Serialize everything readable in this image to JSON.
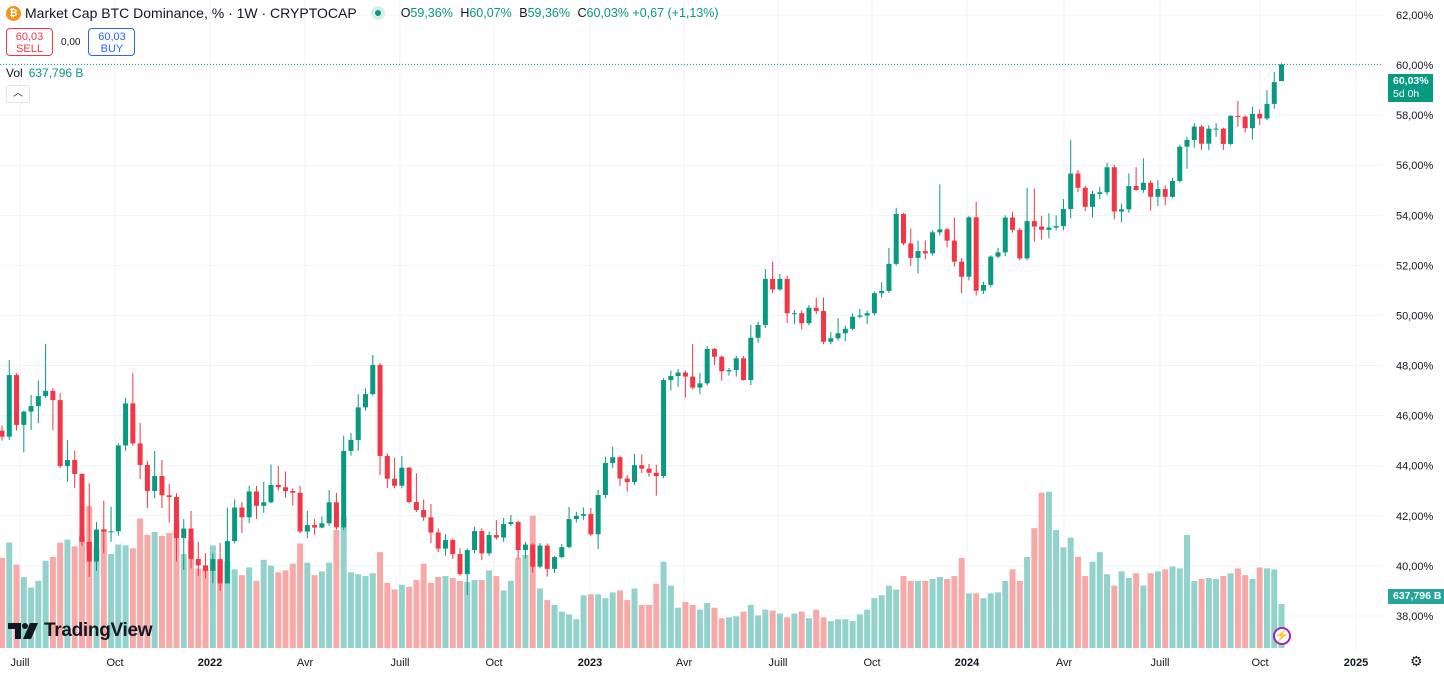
{
  "header": {
    "symbol_icon": "bitcoin-icon",
    "title": "Market Cap BTC Dominance, % · 1W · CRYPTOCAP",
    "ohlc": [
      {
        "label": "O",
        "value": "59,36%"
      },
      {
        "label": "H",
        "value": "60,07%"
      },
      {
        "label": "B",
        "value": "59,36%"
      },
      {
        "label": "C",
        "value": "60,03%"
      }
    ],
    "change": "+0,67 (+1,13%)"
  },
  "trade": {
    "sell_price": "60,03",
    "sell_label": "SELL",
    "spread": "0,00",
    "buy_price": "60,03",
    "buy_label": "BUY"
  },
  "volume_legend": {
    "label": "Vol",
    "value": "637,796 B"
  },
  "collapse_icon": "chevron-up-icon",
  "price_label": {
    "value": "60,03%",
    "countdown": "5d 0h"
  },
  "volume_label": "637,796 B",
  "logo": "TradingView",
  "colors": {
    "up": "#089981",
    "down": "#f23645",
    "vol_up": "#92d2cc",
    "vol_down": "#f7a9a7"
  },
  "chart_data": {
    "type": "candlestick",
    "interval": "1W",
    "y_ticks": [
      "62,00%",
      "60,00%",
      "58,00%",
      "56,00%",
      "54,00%",
      "52,00%",
      "50,00%",
      "48,00%",
      "46,00%",
      "44,00%",
      "42,00%",
      "40,00%",
      "38,00%"
    ],
    "y_tick_values": [
      62,
      60,
      58,
      56,
      54,
      52,
      50,
      48,
      46,
      44,
      42,
      40,
      38
    ],
    "ylim": [
      37.6,
      62.6
    ],
    "x_ticks": [
      {
        "label": "Juill",
        "year": false
      },
      {
        "label": "Oct",
        "year": false
      },
      {
        "label": "2022",
        "year": true
      },
      {
        "label": "Avr",
        "year": false
      },
      {
        "label": "Juill",
        "year": false
      },
      {
        "label": "Oct",
        "year": false
      },
      {
        "label": "2023",
        "year": true
      },
      {
        "label": "Avr",
        "year": false
      },
      {
        "label": "Juill",
        "year": false
      },
      {
        "label": "Oct",
        "year": false
      },
      {
        "label": "2024",
        "year": true
      },
      {
        "label": "Avr",
        "year": false
      },
      {
        "label": "Juill",
        "year": false
      },
      {
        "label": "Oct",
        "year": false
      },
      {
        "label": "2025",
        "year": true
      }
    ],
    "grid": true,
    "last_price": 60.03,
    "open": [
      45.4,
      45.16,
      47.62,
      45.63,
      46.16,
      46.38,
      46.78,
      46.99,
      46.62,
      43.99,
      44.23,
      43.67,
      40.96,
      40.17,
      41.45,
      41.37,
      41.38,
      44.81,
      46.49,
      44.89,
      44.03,
      42.99,
      43.59,
      42.82,
      42.75,
      41.11,
      41.49,
      40.28,
      40.02,
      39.8,
      40.27,
      39.3,
      40.99,
      42.33,
      41.94,
      42.97,
      42.4,
      42.54,
      43.23,
      43.14,
      42.99,
      42.92,
      41.37,
      41.63,
      41.53,
      41.7,
      42.54,
      41.54,
      44.59,
      45.03,
      46.33,
      46.86,
      48.02,
      44.39,
      43.48,
      43.2,
      43.92,
      42.55,
      42.23,
      41.94,
      41.33,
      40.69,
      41.03,
      40.47,
      39.67,
      40.63,
      41.39,
      40.5,
      41.23,
      41.13,
      41.67,
      41.75,
      40.63,
      40.85,
      39.97,
      40.81,
      39.88,
      40.35,
      40.75,
      41.87,
      42.0,
      42.07,
      41.26,
      42.83,
      44.11,
      44.34,
      43.49,
      43.35,
      44.02,
      43.88,
      43.72,
      43.59,
      47.42,
      47.58,
      47.72,
      47.56,
      47.12,
      47.29,
      48.66,
      48.35,
      47.77,
      47.82,
      48.29,
      47.42,
      49.11,
      49.62,
      51.46,
      51.04,
      51.46,
      50.09,
      50.09,
      49.69,
      50.31,
      50.18,
      48.95,
      49.09,
      49.29,
      49.47,
      49.95,
      50.0,
      50.09,
      50.89,
      50.98,
      52.06,
      54.05,
      52.88,
      52.3,
      52.57,
      52.48,
      53.32,
      53.44,
      52.99,
      52.15,
      51.55,
      53.92,
      50.99,
      51.22,
      52.35,
      52.52,
      53.91,
      53.42,
      52.28,
      53.77,
      53.55,
      53.42,
      53.51,
      53.57,
      54.25,
      55.67,
      55.1,
      54.34,
      54.85,
      54.92,
      55.92,
      54.15,
      54.24,
      55.17,
      55.01,
      55.3,
      54.74,
      55.05,
      54.74,
      55.37,
      56.74,
      57.01,
      57.54,
      56.86,
      57.44,
      57.46,
      56.85,
      57.97,
      57.94,
      57.48,
      58.05,
      57.87,
      58.45,
      59.36
    ],
    "high": [
      45.6,
      48.22,
      47.7,
      46.2,
      46.82,
      47.4,
      48.86,
      47.1,
      46.9,
      45.03,
      44.6,
      43.7,
      43.3,
      41.75,
      42.6,
      42.36,
      44.9,
      46.72,
      47.7,
      45.72,
      44.2,
      44.59,
      44.23,
      43.27,
      42.9,
      41.87,
      42.2,
      40.96,
      40.5,
      40.5,
      40.92,
      42.33,
      42.65,
      42.55,
      43.2,
      43.2,
      43.36,
      44.05,
      43.99,
      43.77,
      43.1,
      43.19,
      42.19,
      41.87,
      41.97,
      43.03,
      42.91,
      45.2,
      45.3,
      46.86,
      47.09,
      48.42,
      48.1,
      44.5,
      44.32,
      44.39,
      43.95,
      43.7,
      42.65,
      42.47,
      41.5,
      41.27,
      41.1,
      40.7,
      40.7,
      41.56,
      41.5,
      41.37,
      41.83,
      41.91,
      42.03,
      41.8,
      40.96,
      40.9,
      40.91,
      40.9,
      40.4,
      40.87,
      42.35,
      42.16,
      42.33,
      42.31,
      43.03,
      44.36,
      44.76,
      44.4,
      43.63,
      44.47,
      44.45,
      44.07,
      44.03,
      47.5,
      47.8,
      47.86,
      47.8,
      48.86,
      47.7,
      48.78,
      48.7,
      48.4,
      47.9,
      48.4,
      48.38,
      49.62,
      49.75,
      51.86,
      52.15,
      51.66,
      51.6,
      50.22,
      50.2,
      50.42,
      50.71,
      50.71,
      49.33,
      49.89,
      49.6,
      50.09,
      50.26,
      50.2,
      50.95,
      51.33,
      52.7,
      54.3,
      54.1,
      53.47,
      52.99,
      52.99,
      53.4,
      55.24,
      53.5,
      53.91,
      52.3,
      53.98,
      54.54,
      51.35,
      52.4,
      52.7,
      54.0,
      54.15,
      53.5,
      55.1,
      55.07,
      53.98,
      54.08,
      54.0,
      54.65,
      57.0,
      55.81,
      55.18,
      54.98,
      55.14,
      56.1,
      56.01,
      54.47,
      55.67,
      55.92,
      56.28,
      55.4,
      55.41,
      55.2,
      55.5,
      56.8,
      57.14,
      57.68,
      57.6,
      57.6,
      57.68,
      57.5,
      58.0,
      58.58,
      58.0,
      58.34,
      58.23,
      59.0,
      59.72,
      60.07
    ],
    "low": [
      45.0,
      45.03,
      45.4,
      44.53,
      45.43,
      45.7,
      46.7,
      45.43,
      43.9,
      43.36,
      43.11,
      40.8,
      39.56,
      39.8,
      40.5,
      40.96,
      41.2,
      44.6,
      44.8,
      43.47,
      42.31,
      42.7,
      42.31,
      41.73,
      40.17,
      39.84,
      39.9,
      39.6,
      39.5,
      39.3,
      39.0,
      39.3,
      40.9,
      41.31,
      41.71,
      41.87,
      42.12,
      42.5,
      43.0,
      42.72,
      42.41,
      41.3,
      41.1,
      41.23,
      41.5,
      41.6,
      41.45,
      41.43,
      44.4,
      44.6,
      46.2,
      46.8,
      43.63,
      43.11,
      43.1,
      43.1,
      42.5,
      42.15,
      41.8,
      40.91,
      40.55,
      40.41,
      40.27,
      39.61,
      38.84,
      40.5,
      40.23,
      40.4,
      41.05,
      40.96,
      41.6,
      40.27,
      40.3,
      39.72,
      39.9,
      39.57,
      39.72,
      40.3,
      40.7,
      41.73,
      41.84,
      41.2,
      40.67,
      42.7,
      43.9,
      43.2,
      42.97,
      43.23,
      43.71,
      43.56,
      42.8,
      43.5,
      47.0,
      47.15,
      46.72,
      47.05,
      46.86,
      47.2,
      48.02,
      47.4,
      47.6,
      47.56,
      47.4,
      47.22,
      48.91,
      49.5,
      50.89,
      51.0,
      49.7,
      49.66,
      49.44,
      49.6,
      50.05,
      48.85,
      48.85,
      49.0,
      48.98,
      49.4,
      49.9,
      49.66,
      50.0,
      50.71,
      50.9,
      52.0,
      52.8,
      51.98,
      51.68,
      52.24,
      52.39,
      53.2,
      52.72,
      51.95,
      50.89,
      51.4,
      50.8,
      50.86,
      51.12,
      52.28,
      52.37,
      53.31,
      52.2,
      52.2,
      52.95,
      53.02,
      53.08,
      53.4,
      53.4,
      53.88,
      54.92,
      54.17,
      53.91,
      54.64,
      54.8,
      53.84,
      53.71,
      54.1,
      54.98,
      54.9,
      54.19,
      54.37,
      54.4,
      54.7,
      55.31,
      55.86,
      56.7,
      56.61,
      56.6,
      57.14,
      56.61,
      56.8,
      57.54,
      57.3,
      57.03,
      57.61,
      57.8,
      58.25,
      59.36
    ],
    "close": [
      45.16,
      47.62,
      45.63,
      46.16,
      46.38,
      46.78,
      46.99,
      46.62,
      43.99,
      44.23,
      43.67,
      40.96,
      40.17,
      41.45,
      41.37,
      41.38,
      44.81,
      46.49,
      44.89,
      44.03,
      42.99,
      43.59,
      42.82,
      42.75,
      41.11,
      41.49,
      40.28,
      40.02,
      39.8,
      40.27,
      39.3,
      40.99,
      42.33,
      41.94,
      42.97,
      42.4,
      42.54,
      43.23,
      43.14,
      42.99,
      42.92,
      41.37,
      41.63,
      41.53,
      41.7,
      42.54,
      41.54,
      44.59,
      45.03,
      46.33,
      46.86,
      48.02,
      44.39,
      43.48,
      43.2,
      43.92,
      42.55,
      42.23,
      41.94,
      41.33,
      40.69,
      41.03,
      40.47,
      39.67,
      40.63,
      41.39,
      40.5,
      41.23,
      41.13,
      41.67,
      41.75,
      40.63,
      40.85,
      39.97,
      40.81,
      39.88,
      40.35,
      40.75,
      41.87,
      42.0,
      42.07,
      41.26,
      42.83,
      44.11,
      44.34,
      43.49,
      43.35,
      44.02,
      43.88,
      43.72,
      43.59,
      47.42,
      47.58,
      47.72,
      47.56,
      47.12,
      47.29,
      48.66,
      48.35,
      47.77,
      47.82,
      48.29,
      47.42,
      49.11,
      49.62,
      51.46,
      51.04,
      51.46,
      50.09,
      50.09,
      49.69,
      50.31,
      50.18,
      48.95,
      49.09,
      49.29,
      49.47,
      49.95,
      50.0,
      50.09,
      50.89,
      50.98,
      52.06,
      54.05,
      52.88,
      52.3,
      52.57,
      52.48,
      53.32,
      53.44,
      52.99,
      52.15,
      51.55,
      53.92,
      50.99,
      51.22,
      52.35,
      52.52,
      53.91,
      53.42,
      52.28,
      53.77,
      53.55,
      53.42,
      53.51,
      53.57,
      54.25,
      55.67,
      55.1,
      54.34,
      54.85,
      54.92,
      55.92,
      54.15,
      54.24,
      55.17,
      55.01,
      55.3,
      54.74,
      55.05,
      54.74,
      55.37,
      56.74,
      57.01,
      57.54,
      56.86,
      57.46,
      57.46,
      56.85,
      57.97,
      57.94,
      57.48,
      58.05,
      57.87,
      58.45,
      59.32,
      60.03
    ],
    "volume_unit": "B",
    "volume": [
      1307,
      1529,
      1209,
      1029,
      876,
      973,
      1265,
      1321,
      1529,
      1571,
      1473,
      1626,
      2057,
      1460,
      1724,
      1362,
      1501,
      1487,
      1446,
      1877,
      1640,
      1682,
      1626,
      1668,
      1793,
      1362,
      1557,
      1154,
      1154,
      1487,
      1265,
      1251,
      1140,
      1056,
      1168,
      973,
      1279,
      1195,
      1098,
      1126,
      1223,
      1515,
      1237,
      1056,
      1112,
      1237,
      1710,
      1904,
      1098,
      1070,
      1043,
      1084,
      1390,
      945,
      848,
      917,
      890,
      987,
      1223,
      945,
      1029,
      1043,
      1015,
      973,
      959,
      987,
      987,
      1126,
      1043,
      834,
      973,
      1307,
      1348,
      1918,
      862,
      695,
      625,
      528,
      487,
      417,
      765,
      778,
      778,
      723,
      806,
      834,
      695,
      862,
      625,
      625,
      931,
      1251,
      904,
      584,
      667,
      625,
      556,
      653,
      584,
      431,
      445,
      459,
      528,
      625,
      473,
      556,
      542,
      500,
      445,
      500,
      528,
      431,
      556,
      445,
      389,
      417,
      417,
      389,
      487,
      556,
      723,
      765,
      904,
      848,
      1043,
      973,
      973,
      973,
      1001,
      1029,
      1001,
      1043,
      1307,
      792,
      792,
      723,
      792,
      806,
      973,
      1140,
      973,
      1321,
      1738,
      2252,
      2266,
      1710,
      1460,
      1599,
      1321,
      1043,
      1251,
      1390,
      1070,
      904,
      1112,
      1015,
      1084,
      904,
      1084,
      1112,
      1140,
      1181,
      1154,
      1640,
      973,
      1001,
      1015,
      1001,
      1043,
      1084,
      1154,
      1056,
      1001,
      1168,
      1154,
      1140,
      637.796
    ]
  },
  "settings_icon": "gear-icon",
  "alert_icon": "lightning-icon"
}
